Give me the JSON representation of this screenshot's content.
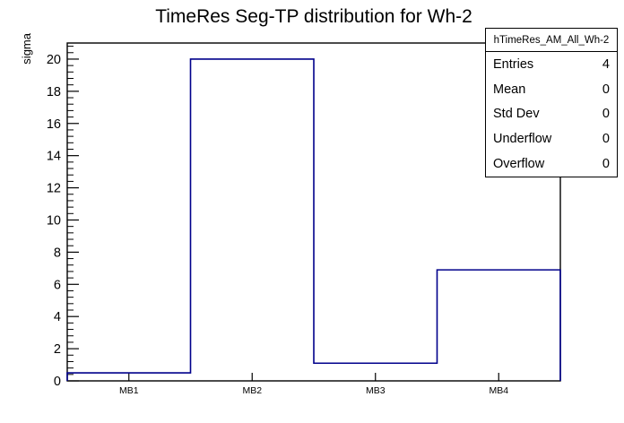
{
  "chart_data": {
    "type": "bar",
    "style": "step-outline-histogram",
    "title": "TimeRes Seg-TP distribution for Wh-2",
    "categories": [
      "MB1",
      "MB2",
      "MB3",
      "MB4"
    ],
    "values": [
      0.5,
      20,
      1.1,
      6.9
    ],
    "xlabel": "",
    "ylabel": "sigma",
    "ylim": [
      0,
      21
    ],
    "y_tick_labels": [
      0,
      2,
      4,
      6,
      8,
      10,
      12,
      14,
      16,
      18,
      20
    ],
    "y_major_step": 2,
    "y_minor_step": 0.4,
    "grid": false,
    "legend_position": "none",
    "line_color": "#00008b",
    "frame_color": "#000000"
  },
  "stats_box": {
    "header": "hTimeRes_AM_All_Wh-2",
    "rows": [
      {
        "label": "Entries",
        "value": "4"
      },
      {
        "label": "Mean",
        "value": "0"
      },
      {
        "label": "Std Dev",
        "value": "0"
      },
      {
        "label": "Underflow",
        "value": "0"
      },
      {
        "label": "Overflow",
        "value": "0"
      }
    ]
  }
}
